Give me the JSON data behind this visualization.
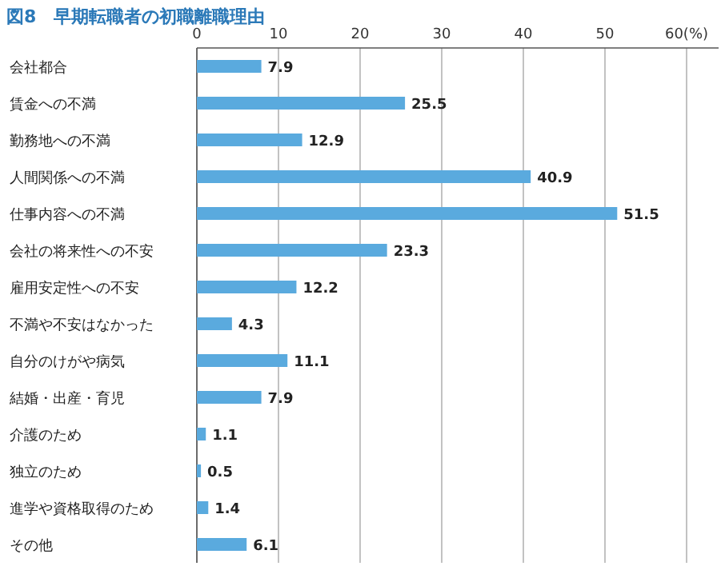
{
  "chart_data": {
    "type": "bar",
    "orientation": "horizontal",
    "title": "図8　早期転職者の初職離職理由",
    "categories": [
      "会社都合",
      "賃金への不満",
      "勤務地への不満",
      "人間関係への不満",
      "仕事内容への不満",
      "会社の将来性への不安",
      "雇用安定性への不安",
      "不満や不安はなかった",
      "自分のけがや病気",
      "結婚・出産・育児",
      "介護のため",
      "独立のため",
      "進学や資格取得のため",
      "その他"
    ],
    "values": [
      7.9,
      25.5,
      12.9,
      40.9,
      51.5,
      23.3,
      12.2,
      4.3,
      11.1,
      7.9,
      1.1,
      0.5,
      1.4,
      6.1
    ],
    "color": "#5aaade",
    "xlim": [
      0,
      60
    ],
    "xticks": [
      0,
      10,
      20,
      30,
      40,
      50,
      {
        "value": 60,
        "label": "60(%)"
      }
    ],
    "grid": "x",
    "data_labels": true
  }
}
